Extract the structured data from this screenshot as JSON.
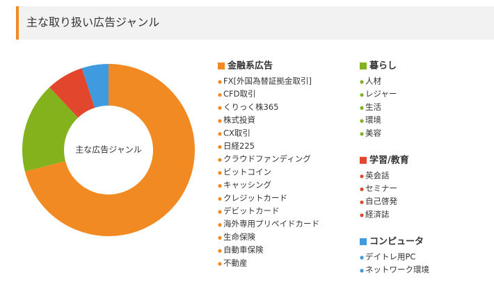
{
  "chart_data": {
    "type": "donut",
    "title": "主な取り扱い広告ジャンル",
    "center_label": "主な広告ジャンル",
    "categories": [
      "金融系広告",
      "暮らし",
      "学習/教育",
      "コンピュータ"
    ],
    "values": [
      71,
      17,
      7,
      5
    ],
    "colors": [
      "#f28a23",
      "#84b21c",
      "#e2472e",
      "#3f9ae0"
    ],
    "items": [
      [
        "FX[外国為替証拠金取引]",
        "CFD取引",
        "くりっく株365",
        "株式投資",
        "CX取引",
        "日経225",
        "クラウドファンディング",
        "ビットコイン",
        "キャッシング",
        "クレジットカード",
        "デビットカード",
        "海外専用プリペイドカード",
        "生命保険",
        "自動車保険",
        "不動産"
      ],
      [
        "人材",
        "レジャー",
        "生活",
        "環境",
        "美容"
      ],
      [
        "英会話",
        "セミナー",
        "自己啓発",
        "経済誌"
      ],
      [
        "デイトレ用PC",
        "ネットワーク環境"
      ]
    ]
  }
}
